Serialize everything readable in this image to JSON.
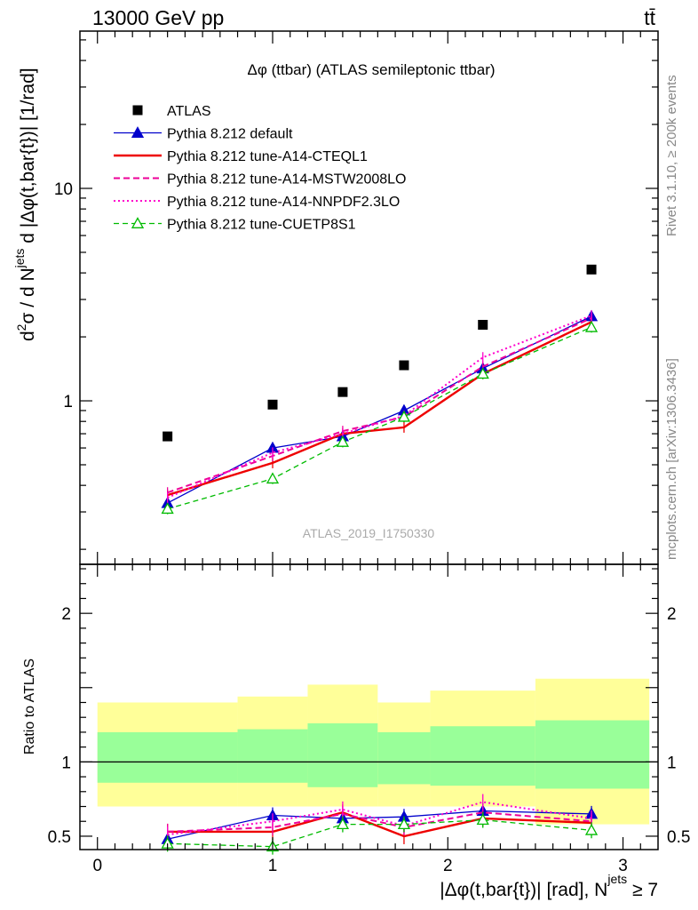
{
  "header": {
    "energy_label": "13000 GeV pp",
    "process_label": "tt̄"
  },
  "side_labels": {
    "rivet": "Rivet 3.1.10, ≥ 200k events",
    "mcplots": "mcplots.cern.ch [arXiv:1306.3436]"
  },
  "chart_data": [
    {
      "type": "line",
      "title": "Δφ (ttbar) (ATLAS semileptonic ttbar)",
      "watermark": "ATLAS_2019_I1750330",
      "ylabel_parts": [
        "d",
        "2",
        "σ / d N",
        "jets",
        " d |Δφ(t,bar{t})| [1/rad]"
      ],
      "yscale": "log",
      "ylim": [
        0.17,
        55
      ],
      "xlim": [
        -0.1,
        3.2
      ],
      "ytick_labels": [
        "1",
        "10"
      ],
      "ytick_values": [
        1,
        10
      ],
      "legend_position": "top-left",
      "x": [
        0.4,
        1.0,
        1.4,
        1.75,
        2.2,
        2.82
      ],
      "series": [
        {
          "name": "ATLAS",
          "color": "#000000",
          "values": [
            0.68,
            0.96,
            1.1,
            1.47,
            2.28,
            4.15
          ]
        },
        {
          "name": "Pythia 8.212 default",
          "color": "#0000cc",
          "values": [
            0.33,
            0.6,
            0.68,
            0.9,
            1.42,
            2.5
          ]
        },
        {
          "name": "Pythia 8.212 tune-A14-CTEQL1",
          "color": "#ee0000",
          "values": [
            0.36,
            0.51,
            0.7,
            0.75,
            1.34,
            2.35
          ]
        },
        {
          "name": "Pythia 8.212 tune-A14-MSTW2008LO",
          "color": "#ee0099",
          "values": [
            0.37,
            0.55,
            0.72,
            0.84,
            1.45,
            2.45
          ]
        },
        {
          "name": "Pythia 8.212 tune-A14-NNPDF2.3LO",
          "color": "#ff00cc",
          "values": [
            0.35,
            0.57,
            0.7,
            0.85,
            1.6,
            2.52
          ]
        },
        {
          "name": "Pythia 8.212 tune-CUETP8S1",
          "color": "#00bb00",
          "values": [
            0.31,
            0.43,
            0.64,
            0.84,
            1.34,
            2.22
          ]
        }
      ]
    },
    {
      "type": "line",
      "ylabel": "Ratio to ATLAS",
      "xlabel_parts": [
        "|Δφ(t,bar{t})| [rad], N",
        "jets",
        " ≥ 7"
      ],
      "ylim": [
        0.41,
        2.33
      ],
      "xlim": [
        -0.1,
        3.2
      ],
      "ytick_labels": [
        "0.5",
        "1",
        "2"
      ],
      "ytick_values": [
        0.5,
        1,
        2
      ],
      "xtick_labels": [
        "0",
        "1",
        "2",
        "3"
      ],
      "xtick_values": [
        0,
        1,
        2,
        3
      ],
      "band_bins": [
        {
          "x0": 0.0,
          "x1": 0.8,
          "yellow": [
            0.7,
            1.4
          ],
          "green": [
            0.86,
            1.2
          ]
        },
        {
          "x0": 0.8,
          "x1": 1.2,
          "yellow": [
            0.7,
            1.44
          ],
          "green": [
            0.86,
            1.22
          ]
        },
        {
          "x0": 1.2,
          "x1": 1.6,
          "yellow": [
            0.7,
            1.52
          ],
          "green": [
            0.83,
            1.26
          ]
        },
        {
          "x0": 1.6,
          "x1": 1.9,
          "yellow": [
            0.7,
            1.4
          ],
          "green": [
            0.85,
            1.2
          ]
        },
        {
          "x0": 1.9,
          "x1": 2.5,
          "yellow": [
            0.7,
            1.48
          ],
          "green": [
            0.84,
            1.24
          ]
        },
        {
          "x0": 2.5,
          "x1": 3.15,
          "yellow": [
            0.58,
            1.56
          ],
          "green": [
            0.82,
            1.28
          ]
        }
      ],
      "x": [
        0.4,
        1.0,
        1.4,
        1.75,
        2.2,
        2.82
      ],
      "series": [
        {
          "name": "Pythia 8.212 default",
          "values": [
            0.48,
            0.64,
            0.62,
            0.63,
            0.67,
            0.65
          ]
        },
        {
          "name": "Pythia 8.212 tune-A14-CTEQL1",
          "values": [
            0.53,
            0.53,
            0.66,
            0.5,
            0.62,
            0.59
          ]
        },
        {
          "name": "Pythia 8.212 tune-A14-MSTW2008LO",
          "values": [
            0.53,
            0.56,
            0.65,
            0.56,
            0.66,
            0.6
          ]
        },
        {
          "name": "Pythia 8.212 tune-A14-NNPDF2.3LO",
          "values": [
            0.51,
            0.6,
            0.68,
            0.57,
            0.73,
            0.62
          ]
        },
        {
          "name": "Pythia 8.212 tune-CUETP8S1",
          "values": [
            0.45,
            0.43,
            0.58,
            0.58,
            0.61,
            0.54
          ]
        }
      ]
    }
  ]
}
